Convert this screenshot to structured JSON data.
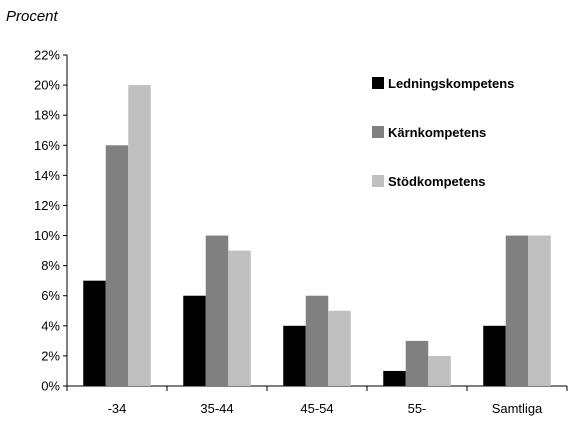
{
  "chart_data": {
    "type": "bar",
    "ylabel": "Procent",
    "xlabel": "",
    "categories": [
      "-34",
      "35-44",
      "45-54",
      "55-",
      "Samtliga"
    ],
    "series": [
      {
        "name": "Ledningskompetens",
        "color": "#000000",
        "values": [
          7,
          6,
          4,
          1,
          4
        ]
      },
      {
        "name": "Kärnkompetens",
        "color": "#808080",
        "values": [
          16,
          10,
          6,
          3,
          10
        ]
      },
      {
        "name": "Stödkompetens",
        "color": "#c0c0c0",
        "values": [
          20,
          9,
          5,
          2,
          10
        ]
      }
    ],
    "ylim": [
      0,
      22
    ],
    "yticks": [
      0,
      2,
      4,
      6,
      8,
      10,
      12,
      14,
      16,
      18,
      20,
      22
    ],
    "ytick_format": "%",
    "grid": false,
    "legend_position": "top-right"
  }
}
